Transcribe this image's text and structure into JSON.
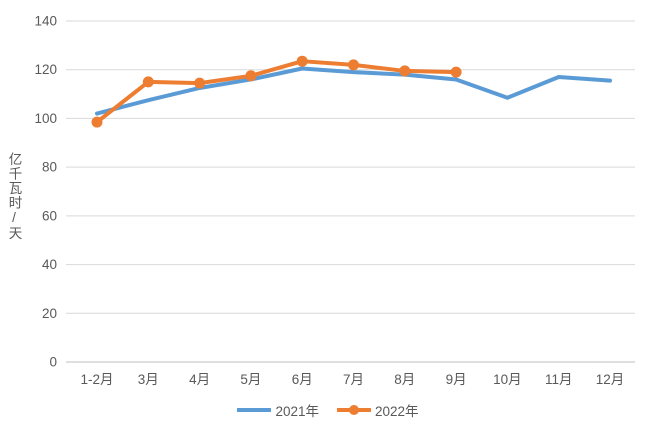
{
  "chart_data": {
    "type": "line",
    "title": "",
    "xlabel": "",
    "ylabel": "亿千瓦时/天",
    "categories": [
      "1-2月",
      "3月",
      "4月",
      "5月",
      "6月",
      "7月",
      "8月",
      "9月",
      "10月",
      "11月",
      "12月"
    ],
    "series": [
      {
        "name": "2021年",
        "color": "#5B9BD5",
        "marker": "none",
        "values": [
          102,
          107.5,
          112.5,
          116,
          120.5,
          119,
          118,
          116,
          108.5,
          117,
          115.5
        ]
      },
      {
        "name": "2022年",
        "color": "#ED7D31",
        "marker": "circle",
        "values": [
          98.5,
          115,
          114.5,
          117.5,
          123.5,
          122,
          119.5,
          119
        ]
      }
    ],
    "ylim": [
      0,
      140
    ],
    "ytick_step": 20,
    "yticks": [
      "0",
      "20",
      "40",
      "60",
      "80",
      "100",
      "120",
      "140"
    ],
    "grid": "horizontal",
    "legend_position": "bottom-center",
    "colors": {
      "grid": "#D9D9D9",
      "axis": "#BFBFBF",
      "text": "#595959",
      "background": "#FFFFFF"
    }
  }
}
